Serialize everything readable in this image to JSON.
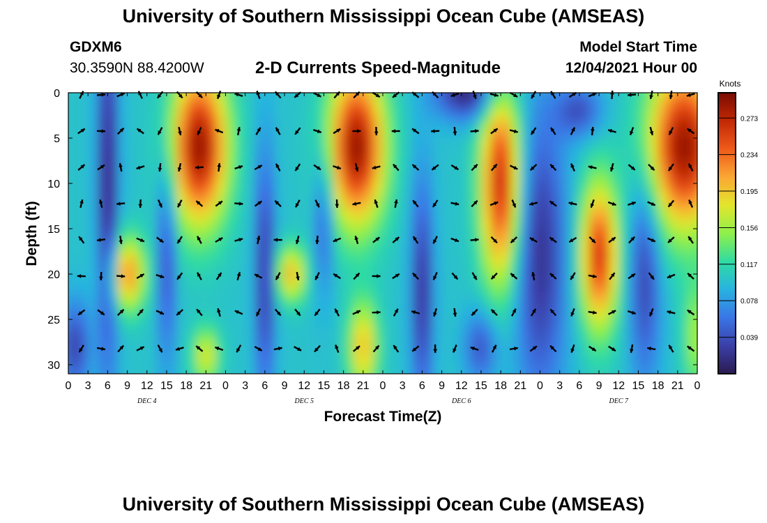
{
  "header": {
    "title": "University of Southern Mississippi Ocean Cube (AMSEAS)",
    "station": "GDXM6",
    "coords": "30.3590N  88.4200W",
    "subtitle": "2-D Currents Speed-Magnitude",
    "start_label": "Model Start Time",
    "start_value": "12/04/2021 Hour 00"
  },
  "footer": {
    "title": "University of Southern Mississippi Ocean Cube (AMSEAS)"
  },
  "chart_data": {
    "type": "heatmap",
    "title": "2-D Currents Speed-Magnitude",
    "xlabel": "Forecast Time(Z)",
    "ylabel": "Depth (ft)",
    "xlim": [
      0,
      96
    ],
    "ylim": [
      0,
      31
    ],
    "x_ticks": [
      0,
      3,
      6,
      9,
      12,
      15,
      18,
      21,
      24,
      27,
      30,
      33,
      36,
      39,
      42,
      45,
      48,
      51,
      54,
      57,
      60,
      63,
      66,
      69,
      72,
      75,
      78,
      81,
      84,
      87,
      90,
      93,
      96
    ],
    "x_tick_labels": [
      "0",
      "3",
      "6",
      "9",
      "12",
      "15",
      "18",
      "21",
      "0",
      "3",
      "6",
      "9",
      "12",
      "15",
      "18",
      "21",
      "0",
      "3",
      "6",
      "9",
      "12",
      "15",
      "18",
      "21",
      "0",
      "3",
      "6",
      "9",
      "12",
      "15",
      "18",
      "21",
      "0"
    ],
    "y_ticks": [
      0,
      5,
      10,
      15,
      20,
      25,
      30
    ],
    "y_tick_labels": [
      "0",
      "5",
      "10",
      "15",
      "20",
      "25",
      "30"
    ],
    "day_labels": [
      {
        "x": 12,
        "label": "DEC 4"
      },
      {
        "x": 36,
        "label": "DEC 5"
      },
      {
        "x": 60,
        "label": "DEC 6"
      },
      {
        "x": 84,
        "label": "DEC 7"
      }
    ],
    "colorbar": {
      "label": "Knots",
      "min": 0.0,
      "max": 0.3,
      "ticks": [
        0.273,
        0.234,
        0.195,
        0.156,
        0.117,
        0.078,
        0.039
      ],
      "colors": [
        "#2a1a4f",
        "#3b3fa8",
        "#3a76e6",
        "#27b3e0",
        "#2fdca2",
        "#8ff04a",
        "#e3e52c",
        "#fba733",
        "#ef5a1a",
        "#c22805",
        "#7a0b03"
      ]
    },
    "arrow_depths": [
      0,
      4,
      8,
      12,
      16,
      20,
      24,
      28
    ],
    "arrow_times": [
      2,
      5,
      8,
      11,
      14,
      17,
      20,
      23,
      26,
      29,
      32,
      35,
      38,
      41,
      44,
      47,
      50,
      53,
      56,
      59,
      62,
      65,
      68,
      71,
      74,
      77,
      80,
      83,
      86,
      89,
      92,
      95
    ]
  }
}
